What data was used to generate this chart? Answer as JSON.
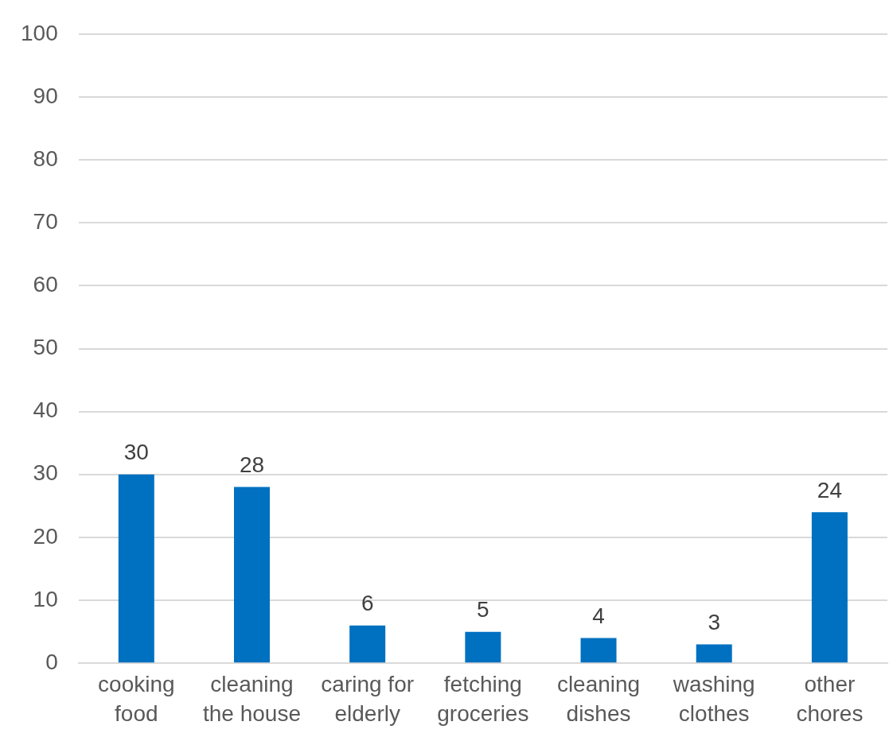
{
  "chart_data": {
    "type": "bar",
    "categories": [
      "cooking food",
      "cleaning the house",
      "caring for elderly",
      "fetching groceries",
      "cleaning dishes",
      "washing clothes",
      "other chores"
    ],
    "values": [
      30,
      28,
      6,
      5,
      4,
      3,
      24
    ],
    "color": "#0070c0",
    "ylim": [
      0,
      100
    ],
    "yticks": [
      0,
      10,
      20,
      30,
      40,
      50,
      60,
      70,
      80,
      90,
      100
    ],
    "grid": "y",
    "data_labels": true,
    "legend": false
  }
}
